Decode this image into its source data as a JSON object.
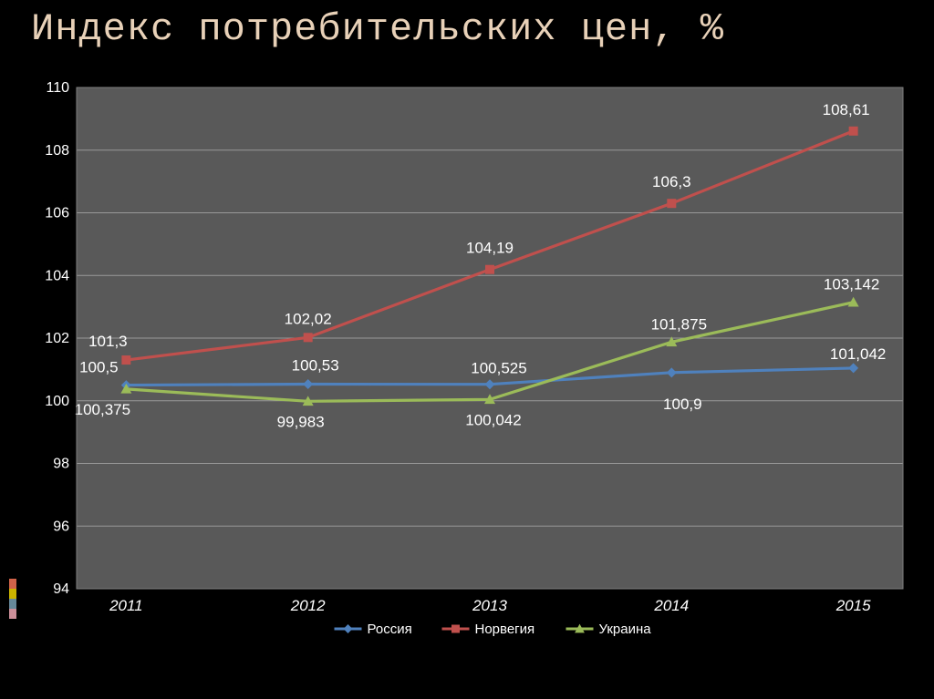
{
  "title": "Индекс потребительских цен, %",
  "chart": {
    "type": "line",
    "background_color": "#000000",
    "plot_background": "#595959",
    "plot_border": "#808080",
    "grid_color": "#999999",
    "axis_label_color": "#ffffff",
    "data_label_color": "#ffffff",
    "y_label_fontsize": 16,
    "x_label_fontsize": 17,
    "data_label_fontsize": 17,
    "legend_fontsize": 15,
    "categories": [
      "2011",
      "2012",
      "2013",
      "2014",
      "2015"
    ],
    "y_min": 94,
    "y_max": 110,
    "y_tick_step": 2,
    "y_ticks": [
      "94",
      "96",
      "98",
      "100",
      "102",
      "104",
      "106",
      "108",
      "110"
    ],
    "series": [
      {
        "name": "Россия",
        "color": "#4f81bd",
        "marker": "diamond",
        "marker_size": 11,
        "line_width": 3.2,
        "values": [
          100.5,
          100.53,
          100.525,
          100.9,
          101.042
        ],
        "labels": [
          "100,5",
          "100,53",
          "100,525",
          "100,9",
          "101,042"
        ],
        "label_pos": [
          "above-left",
          "above",
          "above",
          "below",
          "above"
        ],
        "label_dx": [
          -30,
          8,
          10,
          12,
          5
        ],
        "label_dy": [
          -14,
          -15,
          -12,
          40,
          -10
        ]
      },
      {
        "name": "Норвегия",
        "color": "#c0504d",
        "marker": "square",
        "marker_size": 10,
        "line_width": 3.2,
        "values": [
          101.3,
          102.02,
          104.19,
          106.3,
          108.61
        ],
        "labels": [
          "101,3",
          "102,02",
          "104,19",
          "106,3",
          "108,61"
        ],
        "label_pos": [
          "above-left",
          "above",
          "above",
          "above",
          "above"
        ],
        "label_dx": [
          -20,
          0,
          0,
          0,
          -8
        ],
        "label_dy": [
          -15,
          -15,
          -18,
          -18,
          -18
        ]
      },
      {
        "name": "Украина",
        "color": "#9bbb59",
        "marker": "triangle",
        "marker_size": 12,
        "line_width": 3.2,
        "values": [
          100.375,
          99.983,
          100.042,
          101.875,
          103.142
        ],
        "labels": [
          "100,375",
          "99,983",
          "100,042",
          "101,875",
          "103,142"
        ],
        "label_pos": [
          "below-left",
          "below",
          "below",
          "above",
          "above"
        ],
        "label_dx": [
          -26,
          -8,
          4,
          8,
          -2
        ],
        "label_dy": [
          28,
          28,
          28,
          -14,
          -14
        ]
      }
    ],
    "legend": {
      "items": [
        "Россия",
        "Норвегия",
        "Украина"
      ]
    }
  },
  "deco_colors": [
    "#d16349",
    "#ccb400",
    "#668899",
    "#cc8f99"
  ]
}
